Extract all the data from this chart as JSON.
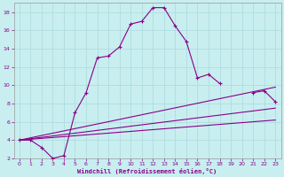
{
  "xlabel": "Windchill (Refroidissement éolien,°C)",
  "background_color": "#c8eef0",
  "line_color": "#880088",
  "grid_color": "#b0dde0",
  "xlim": [
    -0.5,
    23.5
  ],
  "ylim": [
    2,
    19
  ],
  "xticks": [
    0,
    1,
    2,
    3,
    4,
    5,
    6,
    7,
    8,
    9,
    10,
    11,
    12,
    13,
    14,
    15,
    16,
    17,
    18,
    19,
    20,
    21,
    22,
    23
  ],
  "yticks": [
    2,
    4,
    6,
    8,
    10,
    12,
    14,
    16,
    18
  ],
  "main_curve": {
    "x": [
      0,
      1,
      2,
      3,
      4,
      5,
      6,
      7,
      8,
      9,
      10,
      11,
      12,
      13,
      14,
      15,
      16,
      17,
      18,
      21,
      22,
      23
    ],
    "y": [
      4,
      4,
      3.2,
      2,
      2.3,
      7,
      9.2,
      13,
      13.2,
      14.2,
      16.7,
      17.0,
      18.5,
      18.5,
      16.5,
      14.8,
      10.8,
      11.2,
      10.2,
      9.2,
      9.4,
      8.2
    ]
  },
  "straight_lines": [
    {
      "x": [
        0,
        23
      ],
      "y": [
        4,
        9.8
      ]
    },
    {
      "x": [
        0,
        23
      ],
      "y": [
        4,
        7.5
      ]
    },
    {
      "x": [
        0,
        23
      ],
      "y": [
        4,
        6.2
      ]
    }
  ]
}
